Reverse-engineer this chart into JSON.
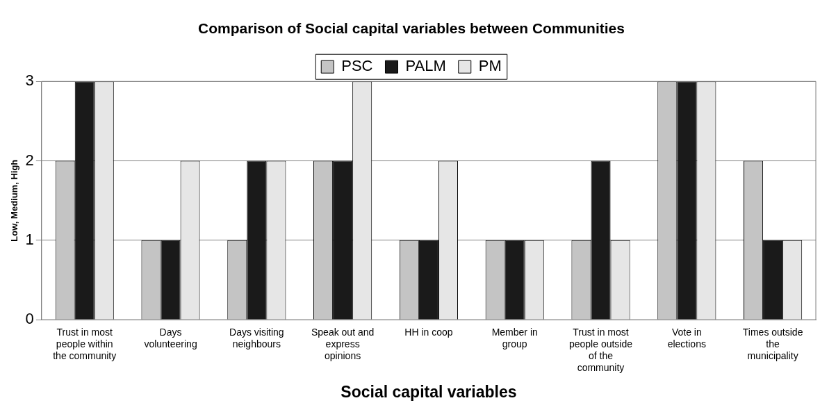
{
  "chart_data": {
    "type": "bar",
    "title": "Comparison of Social capital variables between Communities",
    "xlabel": "Social capital variables",
    "ylabel": "Low, Medium, High",
    "categories": [
      "Trust in most people within the community",
      "Days volunteering",
      "Days visiting neighbours",
      "Speak out and express opinions",
      "HH in coop",
      "Member in group",
      "Trust in most people outside of the community",
      "Vote in elections",
      "Times outside the municipality"
    ],
    "series": [
      {
        "name": "PSC",
        "color": "#c4c4c4",
        "values": [
          2,
          1,
          1,
          2,
          1,
          1,
          1,
          3,
          2
        ]
      },
      {
        "name": "PALM",
        "color": "#1a1a1a",
        "values": [
          3,
          1,
          2,
          2,
          1,
          1,
          2,
          3,
          1
        ]
      },
      {
        "name": "PM",
        "color": "#e6e6e6",
        "values": [
          3,
          2,
          2,
          3,
          2,
          1,
          1,
          3,
          1
        ]
      }
    ],
    "ylim": [
      0,
      3
    ],
    "yticks": [
      0,
      1,
      2,
      3
    ],
    "grid": "y",
    "legend": "top"
  }
}
